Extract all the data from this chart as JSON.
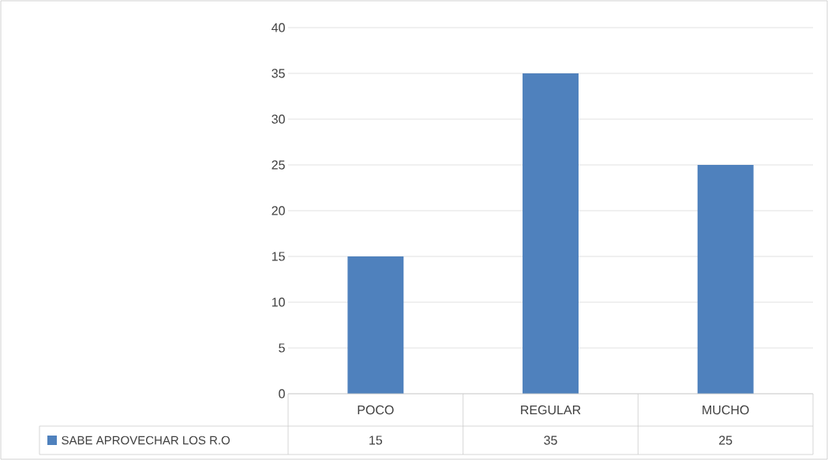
{
  "chart_data": {
    "type": "bar",
    "categories": [
      "POCO",
      "REGULAR",
      "MUCHO"
    ],
    "series": [
      {
        "name": "SABE APROVECHAR LOS R.O",
        "color": "#4f81bd",
        "values": [
          15,
          35,
          25
        ]
      }
    ],
    "ylim": [
      0,
      40
    ],
    "yticks": [
      0,
      5,
      10,
      15,
      20,
      25,
      30,
      35,
      40
    ],
    "grid": "y",
    "legend": "bottom left",
    "data_labels": true
  }
}
